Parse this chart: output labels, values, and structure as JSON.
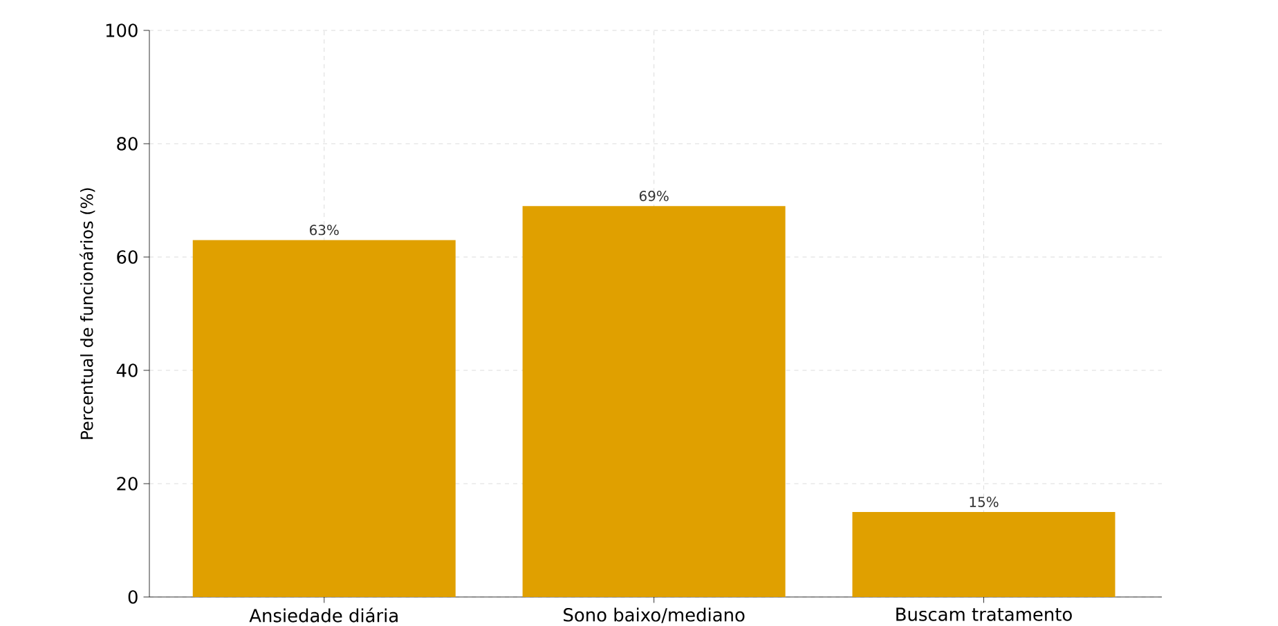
{
  "chart_data": {
    "type": "bar",
    "ylabel": "Percentual de funcionários (%)",
    "categories": [
      "Ansiedade diária",
      "Sono baixo/mediano",
      "Buscam tratamento"
    ],
    "values": [
      63,
      69,
      15
    ],
    "value_labels": [
      "63%",
      "69%",
      "15%"
    ],
    "color": "#e0a000",
    "ylim": [
      0,
      100
    ],
    "yticks": [
      0,
      20,
      40,
      60,
      80,
      100
    ],
    "grid": true
  }
}
